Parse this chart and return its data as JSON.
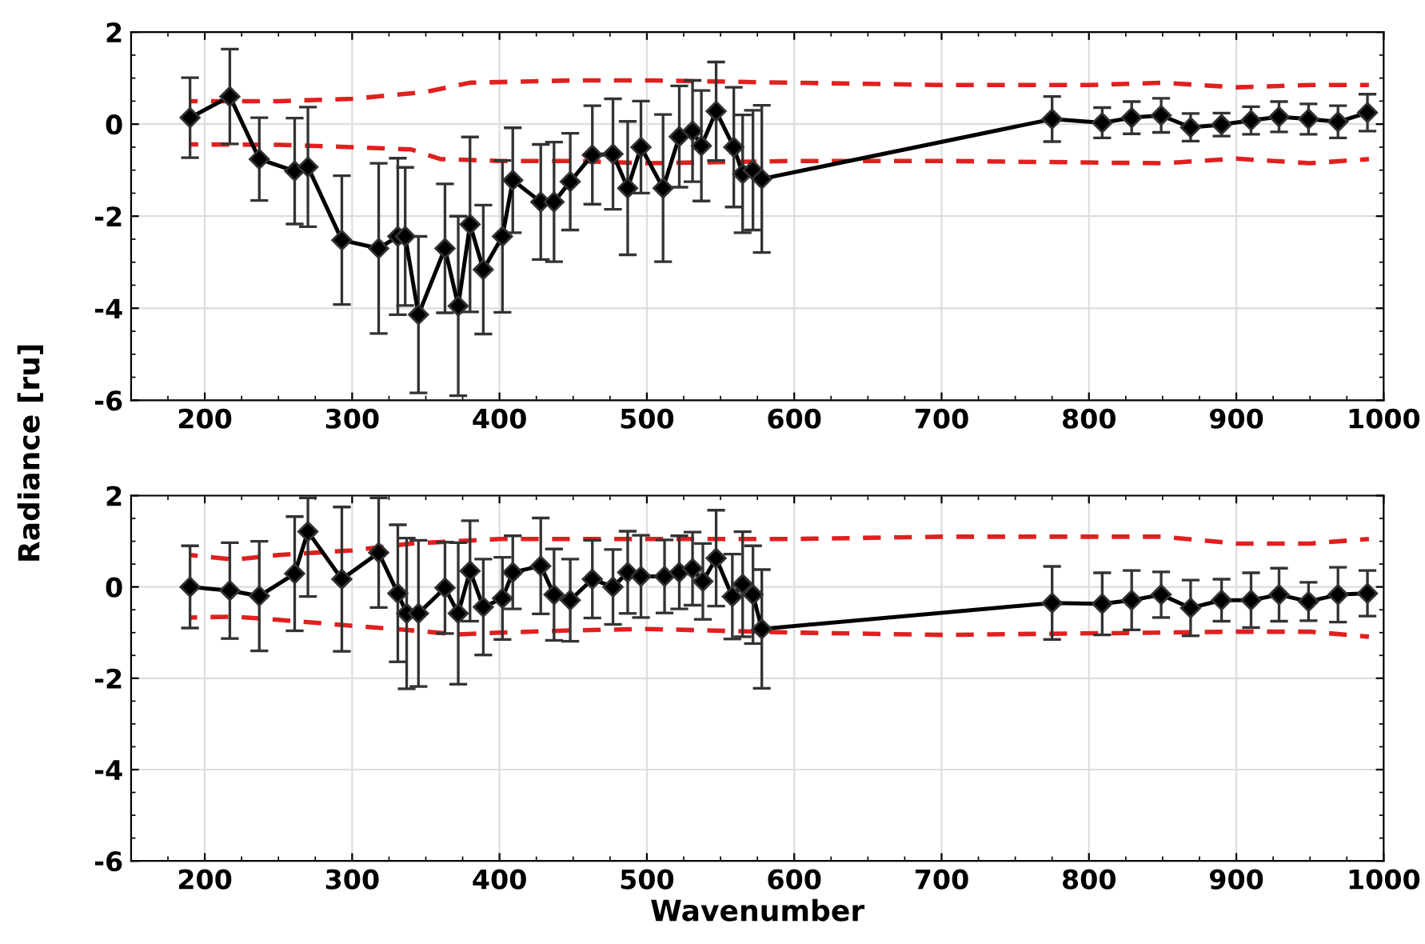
{
  "chart_data": [
    {
      "type": "line",
      "ylabel": "Radiance [ru]",
      "xlim": [
        150,
        1000
      ],
      "ylim": [
        -6,
        2
      ],
      "xticks": [
        200,
        300,
        400,
        500,
        600,
        700,
        800,
        900,
        1000
      ],
      "yticks": [
        -6,
        -4,
        -2,
        0,
        2
      ],
      "grid": true,
      "series": [
        {
          "color": "#000000",
          "marker": "diamond",
          "line_style": "solid",
          "x": [
            190,
            217,
            237,
            261,
            270,
            293,
            318,
            331,
            336,
            345,
            363,
            372,
            380,
            389,
            402,
            409,
            428,
            437,
            448,
            463,
            477,
            487,
            496,
            511,
            522,
            531,
            537,
            547,
            559,
            565,
            572,
            578,
            775,
            809,
            829,
            849,
            869,
            890,
            910,
            929,
            949,
            969,
            989
          ],
          "values": [
            0.14,
            0.6,
            -0.76,
            -1.02,
            -0.93,
            -2.52,
            -2.7,
            -2.44,
            -2.44,
            -4.14,
            -2.7,
            -3.95,
            -2.18,
            -3.16,
            -2.44,
            -1.22,
            -1.69,
            -1.69,
            -1.25,
            -0.67,
            -0.65,
            -1.39,
            -0.5,
            -1.39,
            -0.27,
            -0.15,
            -0.47,
            0.28,
            -0.5,
            -1.08,
            -1.0,
            -1.19,
            0.11,
            0.03,
            0.14,
            0.19,
            -0.07,
            -0.01,
            0.08,
            0.16,
            0.11,
            0.05,
            0.25
          ],
          "errors": [
            0.87,
            1.03,
            0.9,
            1.15,
            1.3,
            1.4,
            1.85,
            1.7,
            1.5,
            1.7,
            1.4,
            1.95,
            1.9,
            1.4,
            1.65,
            1.14,
            1.25,
            1.3,
            1.05,
            1.07,
            1.2,
            1.45,
            1.0,
            1.6,
            1.1,
            1.1,
            1.2,
            1.07,
            1.3,
            1.28,
            1.3,
            1.6,
            0.49,
            0.33,
            0.35,
            0.37,
            0.3,
            0.25,
            0.3,
            0.33,
            0.33,
            0.35,
            0.4
          ]
        },
        {
          "color": "#e02020",
          "marker": "none",
          "line_style": "dashed",
          "x": [
            190,
            250,
            300,
            350,
            380,
            450,
            500,
            600,
            700,
            800,
            850,
            900,
            950,
            990
          ],
          "values": [
            0.5,
            0.5,
            0.55,
            0.7,
            0.9,
            0.95,
            0.95,
            0.9,
            0.85,
            0.85,
            0.9,
            0.8,
            0.85,
            0.85
          ]
        },
        {
          "color": "#e02020",
          "marker": "none",
          "line_style": "dashed",
          "x": [
            190,
            250,
            300,
            340,
            360,
            400,
            450,
            500,
            600,
            700,
            850,
            900,
            950,
            990
          ],
          "values": [
            -0.44,
            -0.45,
            -0.5,
            -0.55,
            -0.76,
            -0.8,
            -0.8,
            -0.85,
            -0.8,
            -0.8,
            -0.85,
            -0.75,
            -0.85,
            -0.76
          ]
        }
      ]
    },
    {
      "type": "line",
      "xlabel": "Wavenumber",
      "xlim": [
        150,
        1000
      ],
      "ylim": [
        -6,
        2
      ],
      "xticks": [
        200,
        300,
        400,
        500,
        600,
        700,
        800,
        900,
        1000
      ],
      "yticks": [
        -6,
        -4,
        -2,
        0,
        2
      ],
      "grid": true,
      "series": [
        {
          "color": "#000000",
          "marker": "diamond",
          "line_style": "solid",
          "x": [
            190,
            217,
            237,
            261,
            270,
            293,
            318,
            331,
            337,
            345,
            363,
            372,
            380,
            389,
            402,
            409,
            428,
            437,
            448,
            463,
            477,
            487,
            496,
            512,
            522,
            531,
            538,
            547,
            558,
            565,
            572,
            578,
            775,
            809,
            829,
            849,
            869,
            890,
            910,
            929,
            949,
            969,
            989
          ],
          "values": [
            0.0,
            -0.08,
            -0.2,
            0.29,
            1.21,
            0.17,
            0.75,
            -0.14,
            -0.58,
            -0.58,
            -0.02,
            -0.58,
            0.35,
            -0.44,
            -0.25,
            0.32,
            0.46,
            -0.17,
            -0.29,
            0.17,
            0.0,
            0.32,
            0.23,
            0.23,
            0.32,
            0.4,
            0.12,
            0.63,
            -0.21,
            0.06,
            -0.17,
            -0.92,
            -0.35,
            -0.37,
            -0.29,
            -0.17,
            -0.46,
            -0.29,
            -0.29,
            -0.17,
            -0.32,
            -0.17,
            -0.14
          ],
          "errors": [
            0.9,
            1.05,
            1.2,
            1.25,
            [
              -0.21,
              1.95
            ],
            1.58,
            1.2,
            1.5,
            1.65,
            1.6,
            1.0,
            1.55,
            1.1,
            1.05,
            0.9,
            0.8,
            1.05,
            1.0,
            0.9,
            0.85,
            0.82,
            0.9,
            0.9,
            0.8,
            0.8,
            0.8,
            0.83,
            1.05,
            0.93,
            1.15,
            1.07,
            1.3,
            0.8,
            0.68,
            0.65,
            0.5,
            0.61,
            0.46,
            0.6,
            0.58,
            0.42,
            0.6,
            0.5
          ]
        },
        {
          "color": "#e02020",
          "marker": "none",
          "line_style": "dashed",
          "x": [
            190,
            220,
            250,
            300,
            340,
            400,
            450,
            500,
            600,
            700,
            850,
            900,
            950,
            990
          ],
          "values": [
            0.7,
            0.6,
            0.7,
            0.8,
            0.95,
            1.05,
            1.05,
            1.05,
            1.05,
            1.1,
            1.1,
            0.95,
            0.95,
            1.05
          ]
        },
        {
          "color": "#e02020",
          "marker": "none",
          "line_style": "dashed",
          "x": [
            190,
            220,
            250,
            300,
            340,
            372,
            400,
            450,
            500,
            600,
            700,
            850,
            900,
            950,
            990
          ],
          "values": [
            -0.67,
            -0.65,
            -0.72,
            -0.85,
            -0.95,
            -1.04,
            -1.0,
            -0.95,
            -0.92,
            -1.0,
            -1.05,
            -1.0,
            -0.98,
            -0.98,
            -1.09
          ]
        }
      ]
    }
  ]
}
